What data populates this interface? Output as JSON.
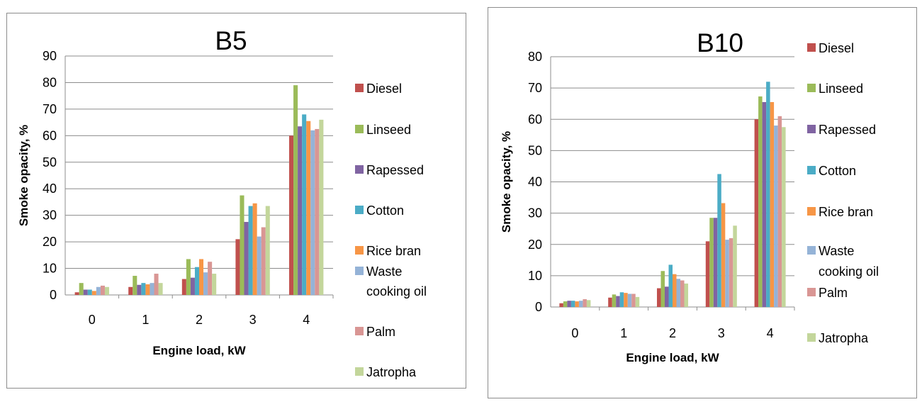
{
  "chart_data": [
    {
      "type": "bar",
      "title": "B5",
      "xlabel": "Engine load, kW",
      "ylabel": "Smoke opacity, %",
      "categories": [
        "0",
        "1",
        "2",
        "3",
        "4"
      ],
      "ylim": [
        0,
        90
      ],
      "yticks": [
        0,
        10,
        20,
        30,
        40,
        50,
        60,
        70,
        80,
        90
      ],
      "grid": true,
      "legend_position": "right",
      "series": [
        {
          "name": "Diesel",
          "color": "#C0504D",
          "values": [
            1,
            3,
            6,
            21,
            60
          ]
        },
        {
          "name": "Linseed",
          "color": "#9BBB59",
          "values": [
            4.5,
            7.2,
            13.5,
            37.5,
            79
          ]
        },
        {
          "name": "Rapessed",
          "color": "#8064A2",
          "values": [
            2,
            3.8,
            6.5,
            27.5,
            63.5
          ]
        },
        {
          "name": "Cotton",
          "color": "#4BACC6",
          "values": [
            2,
            4.5,
            10.5,
            33.5,
            68
          ]
        },
        {
          "name": "Rice bran",
          "color": "#F79646",
          "values": [
            1.5,
            4,
            13.5,
            34.5,
            65.5
          ]
        },
        {
          "name": "Waste cooking oil",
          "color": "#95B3D7",
          "values": [
            3,
            4.5,
            8.5,
            22,
            62
          ]
        },
        {
          "name": "Palm",
          "color": "#D99694",
          "values": [
            3.5,
            8,
            12.5,
            25.5,
            62.5
          ]
        },
        {
          "name": "Jatropha",
          "color": "#C3D69B",
          "values": [
            3,
            4.5,
            8,
            33.5,
            66
          ]
        }
      ]
    },
    {
      "type": "bar",
      "title": "B10",
      "xlabel": "Engine load, kW",
      "ylabel": "Smoke opacity, %",
      "categories": [
        "0",
        "1",
        "2",
        "3",
        "4"
      ],
      "ylim": [
        0,
        80
      ],
      "yticks": [
        0,
        10,
        20,
        30,
        40,
        50,
        60,
        70,
        80
      ],
      "grid": true,
      "legend_position": "right",
      "series": [
        {
          "name": "Diesel",
          "color": "#C0504D",
          "values": [
            1.2,
            3,
            6,
            21,
            60
          ]
        },
        {
          "name": "Linseed",
          "color": "#9BBB59",
          "values": [
            1.8,
            4,
            11.5,
            28.5,
            67.3
          ]
        },
        {
          "name": "Rapessed",
          "color": "#8064A2",
          "values": [
            2,
            3.5,
            6.5,
            28.5,
            65.5
          ]
        },
        {
          "name": "Cotton",
          "color": "#4BACC6",
          "values": [
            2,
            4.7,
            13.5,
            42.5,
            72
          ]
        },
        {
          "name": "Rice bran",
          "color": "#F79646",
          "values": [
            1.8,
            4.5,
            10.5,
            33.2,
            65.5
          ]
        },
        {
          "name": "Waste cooking oil",
          "color": "#95B3D7",
          "values": [
            2,
            4.2,
            9,
            21.5,
            58
          ]
        },
        {
          "name": "Palm",
          "color": "#D99694",
          "values": [
            2.5,
            4.2,
            8.5,
            22,
            61
          ]
        },
        {
          "name": "Jatropha",
          "color": "#C3D69B",
          "values": [
            2.2,
            3.2,
            7.5,
            26,
            57.5
          ]
        }
      ]
    }
  ]
}
